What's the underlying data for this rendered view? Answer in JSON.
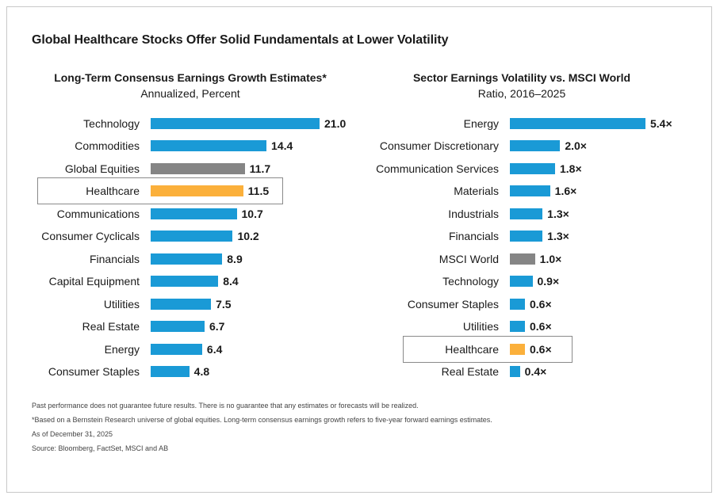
{
  "title": "Global Healthcare Stocks Offer Solid Fundamentals at Lower Volatility",
  "colors": {
    "default": "#1a9ad6",
    "benchmark": "#858585",
    "highlight": "#fbb03b"
  },
  "chart_data": [
    {
      "type": "bar",
      "orientation": "horizontal",
      "title": "Long-Term Consensus Earnings Growth Estimates*",
      "subtitle": "Annualized, Percent",
      "categories": [
        "Technology",
        "Commodities",
        "Global Equities",
        "Healthcare",
        "Communications",
        "Consumer Cyclicals",
        "Financials",
        "Capital Equipment",
        "Utilities",
        "Real Estate",
        "Energy",
        "Consumer Staples"
      ],
      "values": [
        21.0,
        14.4,
        11.7,
        11.5,
        10.7,
        10.2,
        8.9,
        8.4,
        7.5,
        6.7,
        6.4,
        4.8
      ],
      "value_labels": [
        "21.0",
        "14.4",
        "11.7",
        "11.5",
        "10.7",
        "10.2",
        "8.9",
        "8.4",
        "7.5",
        "6.7",
        "6.4",
        "4.8"
      ],
      "benchmark": "Global Equities",
      "highlight": "Healthcare",
      "xlim": [
        0,
        21.0
      ],
      "grid": false
    },
    {
      "type": "bar",
      "orientation": "horizontal",
      "title": "Sector Earnings Volatility vs. MSCI World",
      "subtitle": "Ratio, 2016–2025",
      "categories": [
        "Energy",
        "Consumer Discretionary",
        "Communication Services",
        "Materials",
        "Industrials",
        "Financials",
        "MSCI World",
        "Technology",
        "Consumer Staples",
        "Utilities",
        "Healthcare",
        "Real Estate"
      ],
      "values": [
        5.4,
        2.0,
        1.8,
        1.6,
        1.3,
        1.3,
        1.0,
        0.9,
        0.6,
        0.6,
        0.6,
        0.4
      ],
      "value_labels": [
        "5.4×",
        "2.0×",
        "1.8×",
        "1.6×",
        "1.3×",
        "1.3×",
        "1.0×",
        "0.9×",
        "0.6×",
        "0.6×",
        "0.6×",
        "0.4×"
      ],
      "benchmark": "MSCI World",
      "highlight": "Healthcare",
      "xlim": [
        0,
        5.4
      ],
      "grid": false
    }
  ],
  "footnotes": [
    "Past performance does not guarantee future results. There is no guarantee that any estimates or forecasts will be realized.",
    "*Based on a Bernstein Research universe of global equities. Long-term consensus earnings growth refers to five-year forward earnings estimates.",
    "As of December 31, 2025",
    "Source: Bloomberg, FactSet, MSCI and AB"
  ]
}
